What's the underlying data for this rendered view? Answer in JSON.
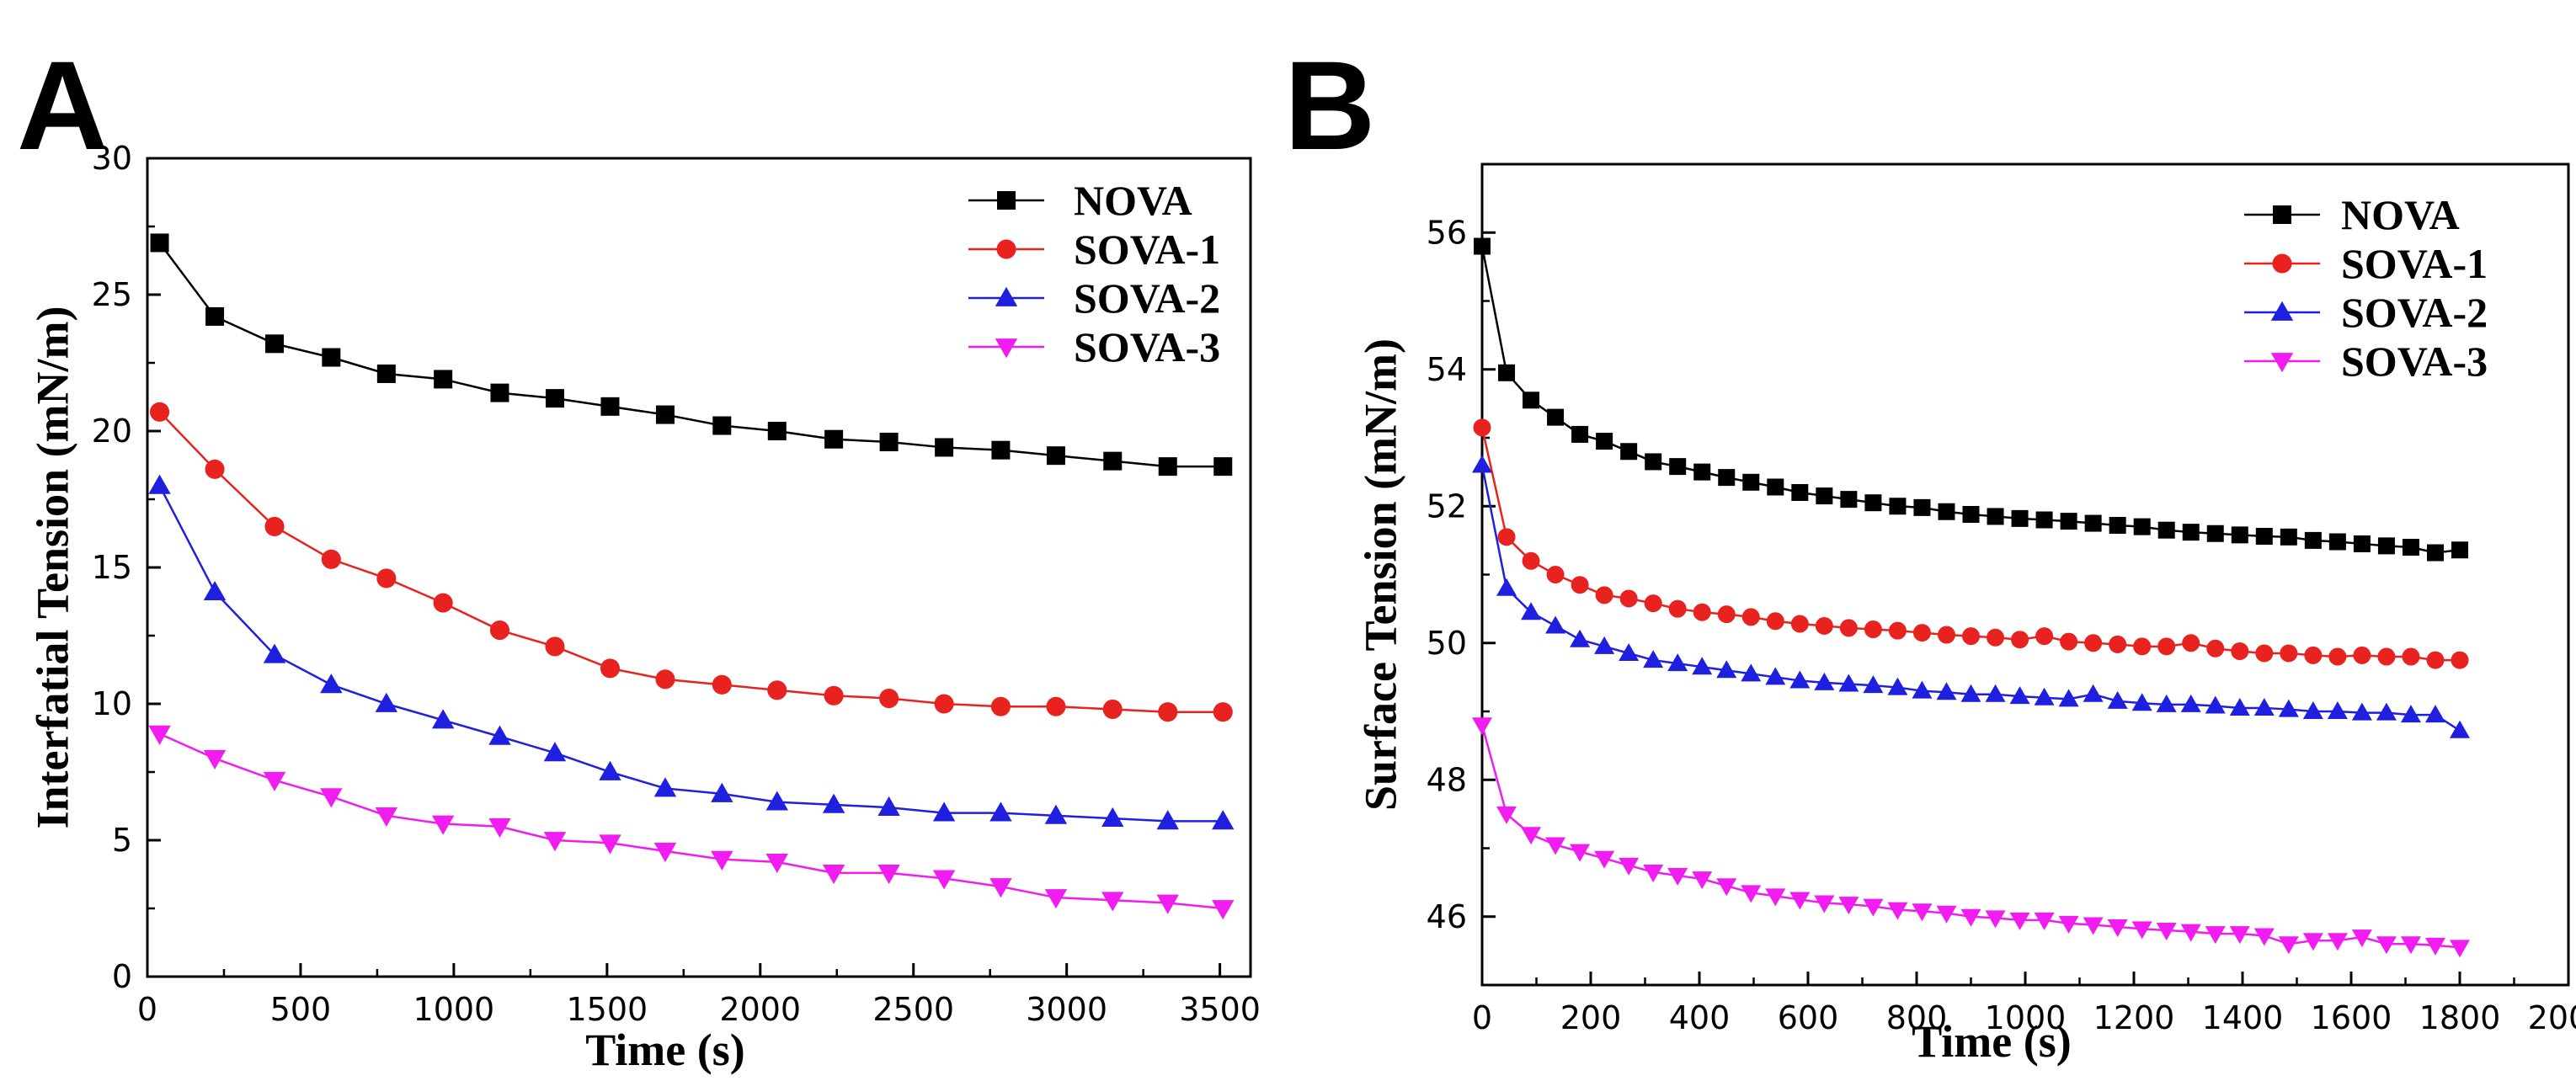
{
  "panels": {
    "a": {
      "letter": "A"
    },
    "b": {
      "letter": "B"
    }
  },
  "chart_data": [
    {
      "type": "line",
      "panel": "A",
      "title": "",
      "xlabel": "Time (s)",
      "ylabel": "Interfatial Tension (mN/m)",
      "xlim": [
        0,
        3600
      ],
      "ylim": [
        0,
        30
      ],
      "xticks": [
        0,
        500,
        1000,
        1500,
        2000,
        2500,
        3000,
        3500
      ],
      "yticks": [
        0,
        5,
        10,
        15,
        20,
        25,
        30
      ],
      "legend_position": "top-right",
      "grid": false,
      "x": [
        40,
        220,
        415,
        600,
        780,
        965,
        1150,
        1330,
        1510,
        1690,
        1875,
        2055,
        2240,
        2420,
        2600,
        2785,
        2965,
        3150,
        3330,
        3510
      ],
      "series": [
        {
          "name": "NOVA",
          "marker": "square",
          "color": "#000000",
          "values": [
            26.9,
            24.2,
            23.2,
            22.7,
            22.1,
            21.9,
            21.4,
            21.2,
            20.9,
            20.6,
            20.2,
            20.0,
            19.7,
            19.6,
            19.4,
            19.3,
            19.1,
            18.9,
            18.7,
            18.7
          ]
        },
        {
          "name": "SOVA-1",
          "marker": "circle",
          "color": "#e8231f",
          "values": [
            20.7,
            18.6,
            16.5,
            15.3,
            14.6,
            13.7,
            12.7,
            12.1,
            11.3,
            10.9,
            10.7,
            10.5,
            10.3,
            10.2,
            10.0,
            9.9,
            9.9,
            9.8,
            9.7,
            9.7
          ]
        },
        {
          "name": "SOVA-2",
          "marker": "triangle-up",
          "color": "#1f1fe0",
          "values": [
            18.0,
            14.1,
            11.8,
            10.7,
            10.0,
            9.4,
            8.8,
            8.2,
            7.5,
            6.9,
            6.7,
            6.4,
            6.3,
            6.2,
            6.0,
            6.0,
            5.9,
            5.8,
            5.7,
            5.7
          ]
        },
        {
          "name": "SOVA-3",
          "marker": "triangle-down",
          "color": "#f01cf0",
          "values": [
            8.9,
            8.0,
            7.2,
            6.6,
            5.9,
            5.6,
            5.5,
            5.0,
            4.9,
            4.6,
            4.3,
            4.2,
            3.8,
            3.8,
            3.6,
            3.3,
            2.9,
            2.8,
            2.7,
            2.5
          ]
        }
      ]
    },
    {
      "type": "line",
      "panel": "B",
      "title": "",
      "xlabel": "Time (s)",
      "ylabel": "Surface Tension (mN/m)",
      "xlim": [
        0,
        2000
      ],
      "ylim": [
        45,
        57
      ],
      "xticks": [
        0,
        200,
        400,
        600,
        800,
        1000,
        1200,
        1400,
        1600,
        1800,
        2000
      ],
      "yticks": [
        46,
        48,
        50,
        52,
        54,
        56
      ],
      "legend_position": "top-right",
      "grid": false,
      "x": [
        0,
        45,
        90,
        135,
        180,
        225,
        270,
        315,
        360,
        405,
        450,
        495,
        540,
        585,
        630,
        675,
        720,
        765,
        810,
        855,
        900,
        945,
        990,
        1035,
        1080,
        1125,
        1170,
        1215,
        1260,
        1305,
        1350,
        1395,
        1440,
        1485,
        1530,
        1575,
        1620,
        1665,
        1710,
        1755,
        1800
      ],
      "series": [
        {
          "name": "NOVA",
          "marker": "square",
          "color": "#000000",
          "values": [
            55.8,
            53.95,
            53.55,
            53.3,
            53.05,
            52.95,
            52.8,
            52.65,
            52.58,
            52.5,
            52.42,
            52.35,
            52.28,
            52.2,
            52.15,
            52.1,
            52.05,
            52.0,
            51.98,
            51.92,
            51.88,
            51.85,
            51.82,
            51.8,
            51.78,
            51.75,
            51.72,
            51.7,
            51.65,
            51.62,
            51.6,
            51.58,
            51.56,
            51.55,
            51.5,
            51.48,
            51.45,
            51.42,
            51.4,
            51.32,
            51.36
          ]
        },
        {
          "name": "SOVA-1",
          "marker": "circle",
          "color": "#e8231f",
          "values": [
            53.15,
            51.55,
            51.2,
            51.0,
            50.85,
            50.7,
            50.65,
            50.58,
            50.5,
            50.45,
            50.42,
            50.38,
            50.32,
            50.28,
            50.25,
            50.22,
            50.2,
            50.18,
            50.15,
            50.12,
            50.1,
            50.08,
            50.05,
            50.1,
            50.02,
            50.0,
            49.98,
            49.95,
            49.95,
            50.0,
            49.92,
            49.88,
            49.85,
            49.85,
            49.82,
            49.8,
            49.82,
            49.8,
            49.8,
            49.75,
            49.75
          ]
        },
        {
          "name": "SOVA-2",
          "marker": "triangle-up",
          "color": "#1f1fe0",
          "values": [
            52.6,
            50.8,
            50.45,
            50.25,
            50.05,
            49.95,
            49.85,
            49.75,
            49.7,
            49.65,
            49.6,
            49.55,
            49.5,
            49.45,
            49.42,
            49.4,
            49.38,
            49.35,
            49.3,
            49.28,
            49.25,
            49.25,
            49.22,
            49.2,
            49.18,
            49.25,
            49.15,
            49.12,
            49.1,
            49.1,
            49.08,
            49.05,
            49.05,
            49.03,
            49.0,
            49.0,
            48.98,
            48.98,
            48.95,
            48.95,
            48.72
          ]
        },
        {
          "name": "SOVA-3",
          "marker": "triangle-down",
          "color": "#f01cf0",
          "values": [
            48.8,
            47.5,
            47.2,
            47.05,
            46.95,
            46.85,
            46.75,
            46.65,
            46.6,
            46.55,
            46.45,
            46.35,
            46.3,
            46.25,
            46.2,
            46.18,
            46.15,
            46.1,
            46.08,
            46.05,
            46.0,
            45.98,
            45.95,
            45.95,
            45.9,
            45.88,
            45.85,
            45.82,
            45.8,
            45.78,
            45.75,
            45.75,
            45.72,
            45.6,
            45.65,
            45.65,
            45.7,
            45.6,
            45.6,
            45.58,
            45.55
          ]
        }
      ]
    }
  ]
}
